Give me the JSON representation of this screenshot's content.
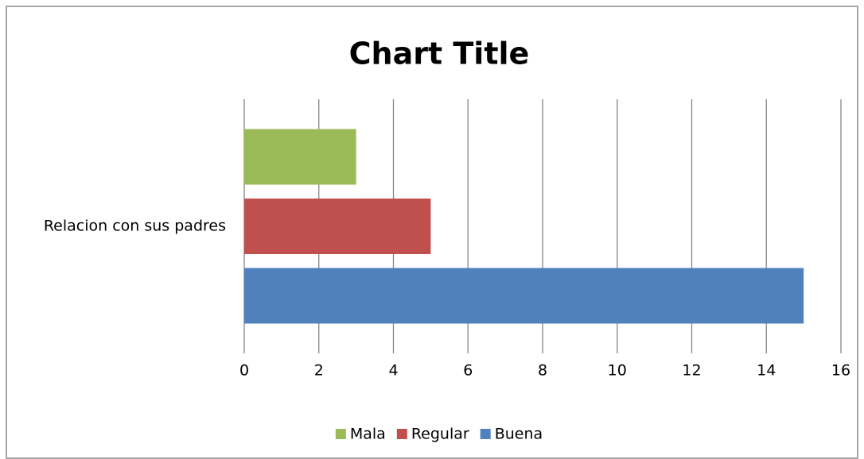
{
  "chart_data": {
    "type": "hbar",
    "title": "Chart Title",
    "categories": [
      "Relacion con sus padres"
    ],
    "series": [
      {
        "name": "Mala",
        "color": "#9bbb59",
        "values": [
          3
        ]
      },
      {
        "name": "Regular",
        "color": "#c0504d",
        "values": [
          5
        ]
      },
      {
        "name": "Buena",
        "color": "#4f81bd",
        "values": [
          15
        ]
      }
    ],
    "xlim": [
      0,
      16
    ],
    "xticks": [
      0,
      2,
      4,
      6,
      8,
      10,
      12,
      14,
      16
    ],
    "grid": true,
    "legend": "bottom"
  }
}
